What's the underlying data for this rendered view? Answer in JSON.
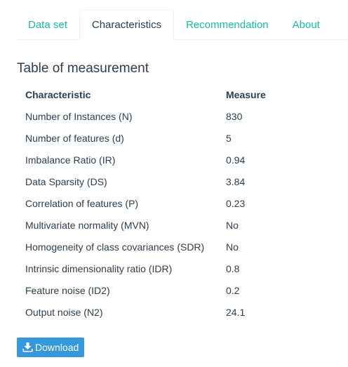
{
  "tabs": [
    {
      "label": "Data set"
    },
    {
      "label": "Characteristics",
      "active": true
    },
    {
      "label": "Recommendation"
    },
    {
      "label": "About"
    }
  ],
  "section_title": "Table of measurement",
  "table": {
    "headers": [
      "Characteristic",
      "Measure"
    ],
    "rows": [
      [
        "Number of Instances (N)",
        "830"
      ],
      [
        "Number of features (d)",
        "5"
      ],
      [
        "Imbalance Ratio (IR)",
        "0.94"
      ],
      [
        "Data Sparsity (DS)",
        "3.84"
      ],
      [
        "Correlation of features (P)",
        "0.23"
      ],
      [
        "Multivariate normality (MVN)",
        "No"
      ],
      [
        "Homogeneity of class covariances (SDR)",
        "No"
      ],
      [
        "Intrinsic dimensionality ratio (IDR)",
        "0.8"
      ],
      [
        "Feature noise (ID2)",
        "0.2"
      ],
      [
        "Output noise (N2)",
        "24.1"
      ]
    ]
  },
  "download": {
    "label": "Download",
    "icon": "download-icon"
  },
  "colors": {
    "tab_link": "#18bc9c",
    "text": "#2c3e50",
    "button": "#3498db"
  }
}
